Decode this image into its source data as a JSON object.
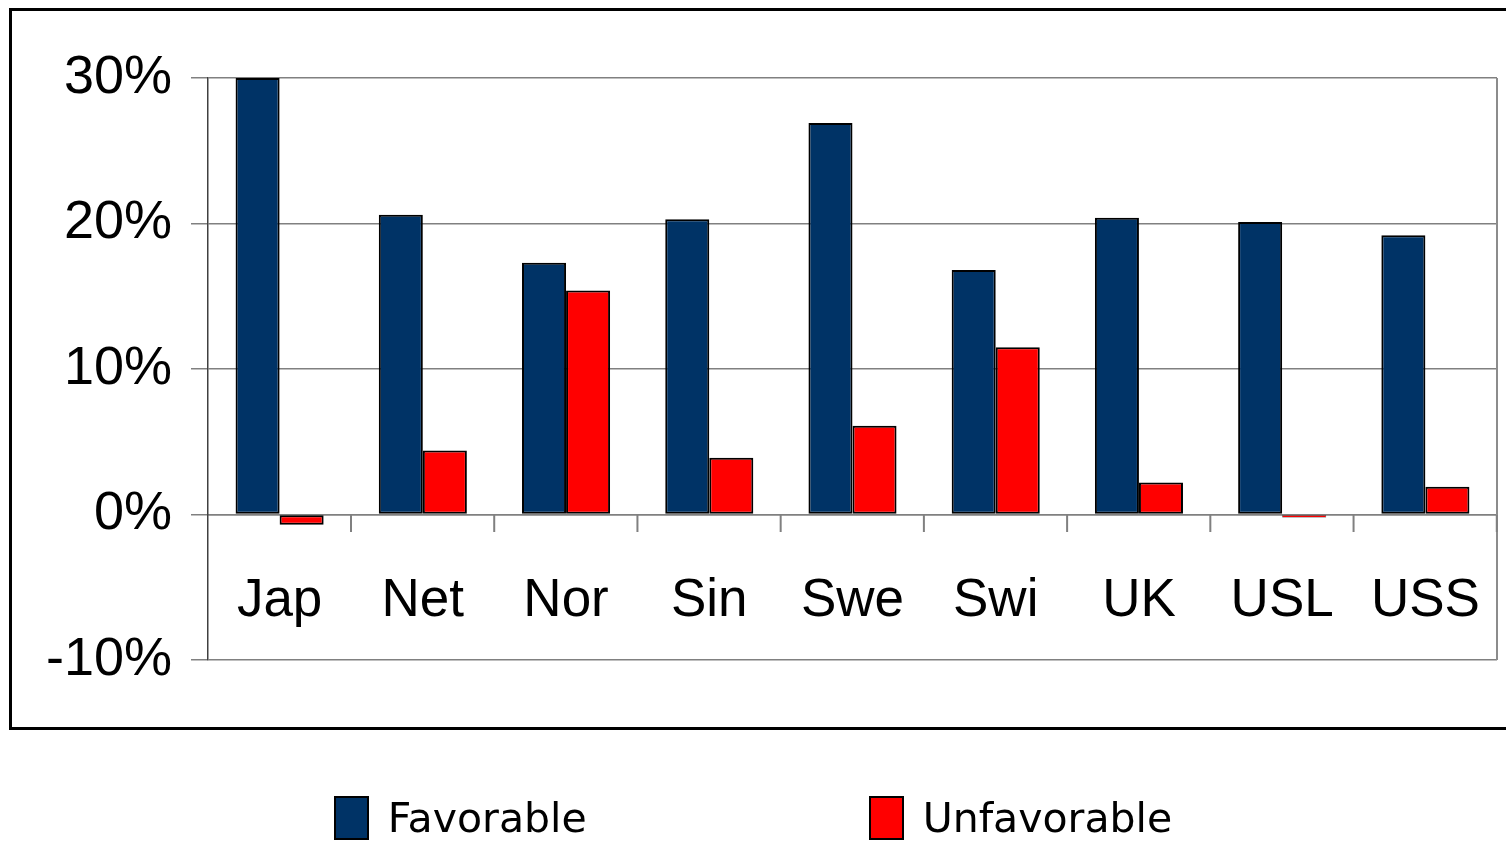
{
  "chart_data": {
    "type": "bar",
    "categories": [
      "Jap",
      "Net",
      "Nor",
      "Sin",
      "Swe",
      "Swi",
      "UK",
      "USL",
      "USS"
    ],
    "series": [
      {
        "name": "Favorable",
        "color": "#003366",
        "values": [
          30,
          20.6,
          17.3,
          20.3,
          26.9,
          16.8,
          20.4,
          20.1,
          19.2
        ]
      },
      {
        "name": "Unfavorable",
        "color": "#ff0000",
        "values": [
          -0.7,
          4.4,
          15.4,
          3.9,
          6.1,
          11.5,
          2.2,
          -0.2,
          1.9
        ]
      }
    ],
    "ylim": [
      -10,
      30
    ],
    "yticks": [
      {
        "value": -10,
        "label": "-10%"
      },
      {
        "value": 0,
        "label": "0%"
      },
      {
        "value": 10,
        "label": "10%"
      },
      {
        "value": 20,
        "label": "20%"
      },
      {
        "value": 30,
        "label": "30%"
      }
    ],
    "grid": "y",
    "legend": "bottom"
  }
}
